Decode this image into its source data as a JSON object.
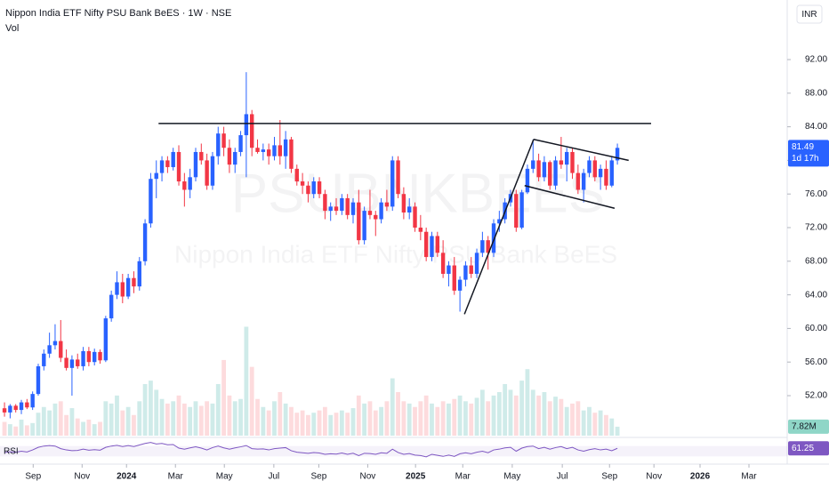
{
  "chart_data": {
    "type": "candlestick",
    "title": "Nippon India ETF Nifty PSU Bank BeES · 1W · NSE",
    "volume_label": "Vol",
    "currency": "INR",
    "rsi_label": "RSI",
    "watermark": [
      "PSUBNKBEES",
      "Nippon India ETF Nifty PSU Bank BeES"
    ],
    "countdown": "1d 17h",
    "volume_last_label": "7.82M",
    "up_color": "#2962ff",
    "down_color": "#f23645",
    "volume_up_color": "rgba(38,166,154,0.22)",
    "volume_down_color": "rgba(242,54,69,0.18)",
    "rsi_color": "#7e57c2",
    "xlim": [
      -0.8,
      139.2
    ],
    "xticks": [
      {
        "value": 5.1,
        "label": "Sep"
      },
      {
        "value": 13.8,
        "label": "Nov"
      },
      {
        "value": 21.7,
        "label": "2024"
      },
      {
        "value": 30.4,
        "label": "Mar"
      },
      {
        "value": 39.1,
        "label": "May"
      },
      {
        "value": 47.9,
        "label": "Jul"
      },
      {
        "value": 55.9,
        "label": "Sep"
      },
      {
        "value": 64.6,
        "label": "Nov"
      },
      {
        "value": 73.1,
        "label": "2025"
      },
      {
        "value": 81.5,
        "label": "Mar"
      },
      {
        "value": 90.3,
        "label": "May"
      },
      {
        "value": 99.2,
        "label": "Jul"
      },
      {
        "value": 107.6,
        "label": "Sep"
      },
      {
        "value": 115.5,
        "label": "Nov"
      },
      {
        "value": 123.7,
        "label": "2026"
      },
      {
        "value": 132.4,
        "label": "Mar"
      }
    ],
    "ylim": [
      47.24,
      99.09
    ],
    "yticks": [
      {
        "value": 92,
        "label": "92.00"
      },
      {
        "value": 88,
        "label": "88.00"
      },
      {
        "value": 84,
        "label": "84.00"
      },
      {
        "value": 80,
        "label": "80.00"
      },
      {
        "value": 76,
        "label": "76.00"
      },
      {
        "value": 72,
        "label": "72.00"
      },
      {
        "value": 68,
        "label": "68.00"
      },
      {
        "value": 64,
        "label": "64.00"
      },
      {
        "value": 60,
        "label": "60.00"
      },
      {
        "value": 56,
        "label": "56.00"
      },
      {
        "value": 52,
        "label": "52.00"
      }
    ],
    "volume_ylim": [
      0,
      380
    ],
    "rsi_ylim": [
      0,
      100
    ],
    "candles": [
      [
        50.5,
        51.2,
        49.5,
        50.0
      ],
      [
        50.0,
        51.0,
        49.3,
        50.8
      ],
      [
        50.8,
        51.0,
        50.0,
        50.3
      ],
      [
        50.3,
        51.5,
        49.8,
        51.2
      ],
      [
        51.2,
        51.6,
        50.4,
        50.6
      ],
      [
        50.6,
        52.5,
        50.3,
        52.2
      ],
      [
        52.2,
        55.8,
        52.0,
        55.5
      ],
      [
        55.5,
        57.5,
        55.0,
        57.0
      ],
      [
        57.0,
        59.5,
        56.5,
        58.0
      ],
      [
        58.0,
        60.5,
        57.5,
        58.5
      ],
      [
        58.5,
        61.0,
        56.0,
        56.5
      ],
      [
        56.5,
        57.5,
        55.0,
        55.3
      ],
      [
        55.3,
        56.8,
        52.0,
        56.3
      ],
      [
        56.3,
        57.0,
        55.2,
        55.5
      ],
      [
        55.5,
        57.8,
        55.0,
        57.3
      ],
      [
        57.3,
        57.8,
        55.5,
        56.0
      ],
      [
        56.0,
        57.6,
        55.6,
        57.2
      ],
      [
        57.2,
        57.5,
        55.8,
        56.2
      ],
      [
        56.2,
        61.5,
        56.0,
        61.2
      ],
      [
        61.2,
        64.5,
        60.8,
        64.0
      ],
      [
        64.0,
        66.8,
        63.5,
        65.5
      ],
      [
        65.5,
        66.5,
        63.0,
        63.8
      ],
      [
        63.8,
        66.5,
        63.5,
        66.0
      ],
      [
        66.0,
        66.8,
        64.2,
        65.0
      ],
      [
        65.0,
        68.5,
        64.5,
        68.0
      ],
      [
        68.0,
        73.0,
        67.5,
        72.5
      ],
      [
        72.5,
        78.5,
        72.0,
        77.8
      ],
      [
        77.8,
        80.0,
        75.5,
        78.5
      ],
      [
        78.5,
        80.5,
        77.5,
        80.0
      ],
      [
        80.0,
        80.5,
        78.5,
        79.2
      ],
      [
        79.2,
        81.5,
        78.8,
        81.0
      ],
      [
        81.0,
        81.8,
        77.0,
        77.5
      ],
      [
        77.5,
        78.5,
        74.5,
        76.5
      ],
      [
        76.5,
        79.0,
        75.5,
        78.0
      ],
      [
        78.0,
        81.5,
        77.5,
        81.0
      ],
      [
        81.0,
        82.0,
        79.5,
        80.0
      ],
      [
        80.0,
        80.8,
        76.5,
        77.0
      ],
      [
        77.0,
        81.0,
        76.5,
        80.5
      ],
      [
        80.5,
        84.0,
        79.5,
        83.2
      ],
      [
        83.2,
        84.0,
        80.5,
        81.5
      ],
      [
        81.5,
        82.5,
        78.5,
        79.5
      ],
      [
        79.5,
        81.5,
        78.5,
        81.0
      ],
      [
        81.0,
        83.5,
        80.5,
        83.0
      ],
      [
        83.0,
        90.5,
        78.0,
        85.5
      ],
      [
        85.5,
        86.0,
        80.5,
        81.5
      ],
      [
        81.5,
        82.5,
        80.8,
        81.0
      ],
      [
        81.0,
        82.0,
        80.0,
        81.3
      ],
      [
        81.3,
        82.0,
        79.5,
        80.5
      ],
      [
        80.5,
        82.8,
        80.0,
        81.8
      ],
      [
        81.8,
        84.8,
        79.5,
        80.5
      ],
      [
        80.5,
        83.5,
        79.0,
        82.5
      ],
      [
        82.5,
        82.8,
        78.5,
        79.0
      ],
      [
        79.0,
        79.5,
        77.0,
        77.5
      ],
      [
        77.5,
        78.5,
        76.0,
        77.0
      ],
      [
        77.0,
        77.5,
        75.0,
        76.0
      ],
      [
        76.0,
        78.0,
        75.5,
        77.5
      ],
      [
        77.5,
        78.0,
        75.5,
        76.0
      ],
      [
        76.0,
        76.5,
        73.0,
        74.0
      ],
      [
        74.0,
        75.0,
        72.8,
        74.5
      ],
      [
        74.5,
        75.5,
        73.5,
        74.0
      ],
      [
        74.0,
        76.0,
        73.5,
        75.5
      ],
      [
        75.5,
        76.0,
        73.0,
        73.5
      ],
      [
        73.5,
        75.5,
        72.5,
        75.0
      ],
      [
        75.0,
        76.5,
        70.0,
        70.5
      ],
      [
        70.5,
        74.5,
        70.0,
        74.0
      ],
      [
        74.0,
        76.5,
        73.0,
        73.5
      ],
      [
        73.5,
        74.0,
        71.0,
        73.0
      ],
      [
        73.0,
        75.5,
        72.5,
        75.0
      ],
      [
        75.0,
        76.5,
        74.0,
        74.5
      ],
      [
        74.5,
        80.5,
        74.0,
        80.0
      ],
      [
        80.0,
        80.5,
        75.5,
        76.0
      ],
      [
        76.0,
        76.8,
        73.0,
        73.8
      ],
      [
        73.8,
        75.5,
        73.0,
        74.5
      ],
      [
        74.5,
        75.0,
        71.5,
        72.0
      ],
      [
        72.0,
        73.5,
        70.5,
        71.5
      ],
      [
        71.5,
        72.0,
        68.0,
        68.5
      ],
      [
        68.5,
        71.5,
        68.0,
        71.0
      ],
      [
        71.0,
        71.5,
        68.5,
        69.0
      ],
      [
        69.0,
        70.5,
        66.0,
        66.5
      ],
      [
        66.5,
        68.0,
        65.0,
        67.5
      ],
      [
        67.5,
        68.5,
        64.0,
        64.5
      ],
      [
        64.5,
        66.2,
        62.0,
        65.8
      ],
      [
        65.8,
        68.0,
        65.0,
        67.5
      ],
      [
        67.5,
        68.5,
        66.0,
        66.5
      ],
      [
        66.5,
        69.5,
        66.0,
        69.0
      ],
      [
        69.0,
        71.5,
        68.5,
        70.5
      ],
      [
        70.5,
        71.0,
        67.0,
        69.0
      ],
      [
        69.0,
        73.0,
        68.5,
        72.5
      ],
      [
        72.5,
        74.0,
        71.5,
        73.0
      ],
      [
        73.0,
        75.5,
        72.5,
        75.0
      ],
      [
        75.0,
        76.5,
        74.5,
        76.0
      ],
      [
        76.0,
        76.5,
        71.5,
        72.0
      ],
      [
        72.0,
        76.5,
        71.8,
        76.2
      ],
      [
        76.2,
        79.5,
        76.0,
        79.0
      ],
      [
        79.0,
        82.5,
        78.5,
        80.0
      ],
      [
        80.0,
        80.8,
        77.5,
        78.0
      ],
      [
        78.0,
        80.5,
        77.5,
        79.8
      ],
      [
        79.8,
        80.0,
        76.5,
        77.0
      ],
      [
        77.0,
        80.5,
        76.5,
        80.0
      ],
      [
        80.0,
        82.8,
        79.0,
        79.5
      ],
      [
        79.5,
        81.5,
        77.5,
        81.0
      ],
      [
        81.0,
        81.5,
        77.8,
        78.5
      ],
      [
        78.5,
        79.5,
        76.0,
        76.5
      ],
      [
        76.5,
        79.0,
        75.0,
        78.5
      ],
      [
        78.5,
        80.5,
        78.0,
        80.0
      ],
      [
        80.0,
        80.5,
        77.5,
        78.0
      ],
      [
        78.0,
        79.5,
        76.5,
        79.0
      ],
      [
        79.0,
        80.0,
        76.5,
        77.0
      ],
      [
        77.0,
        80.5,
        76.8,
        80.0
      ],
      [
        80.0,
        82.0,
        79.5,
        81.49
      ]
    ],
    "volume": [
      12,
      10,
      8,
      14,
      9,
      11,
      20,
      25,
      22,
      28,
      30,
      18,
      24,
      15,
      12,
      14,
      10,
      12,
      30,
      28,
      35,
      22,
      25,
      18,
      30,
      45,
      48,
      40,
      32,
      28,
      30,
      35,
      28,
      25,
      30,
      26,
      30,
      28,
      45,
      66,
      35,
      30,
      32,
      95,
      60,
      32,
      25,
      22,
      30,
      38,
      28,
      25,
      20,
      22,
      18,
      20,
      22,
      25,
      18,
      20,
      22,
      20,
      24,
      35,
      28,
      30,
      22,
      25,
      30,
      50,
      38,
      30,
      28,
      25,
      30,
      35,
      28,
      25,
      30,
      28,
      32,
      35,
      30,
      28,
      33,
      40,
      30,
      35,
      38,
      45,
      40,
      35,
      48,
      58,
      40,
      35,
      38,
      30,
      34,
      32,
      25,
      28,
      30,
      22,
      25,
      20,
      22,
      18,
      15,
      7.82
    ],
    "rsi": [
      45,
      48,
      46,
      50,
      47,
      55,
      65,
      70,
      72,
      70,
      60,
      55,
      52,
      53,
      58,
      54,
      56,
      54,
      65,
      70,
      73,
      68,
      72,
      68,
      74,
      80,
      84,
      78,
      80,
      75,
      76,
      62,
      58,
      63,
      67,
      62,
      55,
      64,
      70,
      63,
      58,
      63,
      67,
      72,
      60,
      58,
      59,
      55,
      60,
      62,
      64,
      52,
      46,
      44,
      42,
      45,
      43,
      38,
      40,
      39,
      43,
      38,
      42,
      33,
      42,
      41,
      38,
      44,
      42,
      58,
      45,
      38,
      41,
      35,
      33,
      28,
      38,
      34,
      30,
      35,
      30,
      40,
      44,
      40,
      46,
      50,
      44,
      55,
      58,
      63,
      65,
      50,
      62,
      68,
      70,
      60,
      65,
      58,
      64,
      68,
      60,
      65,
      55,
      50,
      56,
      60,
      55,
      58,
      52,
      61.25
    ],
    "trend_lines": [
      {
        "x": [
          27.4,
          115.0
        ],
        "y": [
          84.4,
          84.4
        ]
      },
      {
        "x": [
          81.8,
          94.1
        ],
        "y": [
          61.7,
          82.5
        ]
      },
      {
        "x": [
          94.1,
          111.0
        ],
        "y": [
          82.5,
          80.0
        ]
      },
      {
        "x": [
          92.5,
          108.5
        ],
        "y": [
          77.0,
          74.3
        ]
      }
    ]
  }
}
